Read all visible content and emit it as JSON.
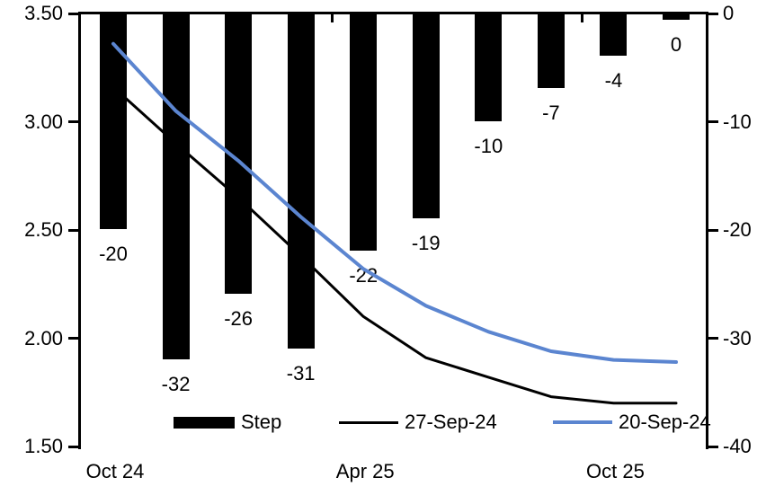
{
  "chart_data": {
    "type": "combo-bar-line",
    "title": "",
    "bar_series": {
      "name": "Step",
      "axis": "right",
      "color": "#000000",
      "values": [
        -20,
        -32,
        -26,
        -31,
        -22,
        -19,
        -10,
        -7,
        -4,
        0
      ],
      "data_labels": [
        "-20",
        "-32",
        "-26",
        "-31",
        "-22",
        "-19",
        "-10",
        "-7",
        "-4",
        "0"
      ]
    },
    "line_series": [
      {
        "name": "27-Sep-24",
        "axis": "left",
        "color": "#000000",
        "stroke_width": 3,
        "values": [
          3.16,
          2.9,
          2.65,
          2.38,
          2.1,
          1.91,
          1.82,
          1.73,
          1.7,
          1.7
        ]
      },
      {
        "name": "20-Sep-24",
        "axis": "left",
        "color": "#5b85d0",
        "stroke_width": 4,
        "values": [
          3.36,
          3.05,
          2.82,
          2.56,
          2.32,
          2.15,
          2.03,
          1.94,
          1.9,
          1.89
        ]
      }
    ],
    "x_axis": {
      "num_categories": 10,
      "tick_labels": [
        {
          "label": "Oct 24",
          "index": 0
        },
        {
          "label": "Apr 25",
          "index": 4
        },
        {
          "label": "Oct 25",
          "index": 8
        }
      ]
    },
    "left_axis": {
      "range": [
        1.5,
        3.5
      ],
      "ticks": [
        "3.50",
        "3.00",
        "2.50",
        "2.00",
        "1.50"
      ]
    },
    "right_axis": {
      "range": [
        -40,
        0
      ],
      "ticks": [
        "0",
        "-10",
        "-20",
        "-30",
        "-40"
      ]
    },
    "grid": false,
    "legend_position": "bottom-inside",
    "legend": {
      "items": [
        {
          "label": "Step",
          "swatch": "bar",
          "color": "#000000"
        },
        {
          "label": "27-Sep-24",
          "swatch": "line",
          "color": "#000000"
        },
        {
          "label": "20-Sep-24",
          "swatch": "line",
          "color": "#5b85d0"
        }
      ]
    }
  }
}
